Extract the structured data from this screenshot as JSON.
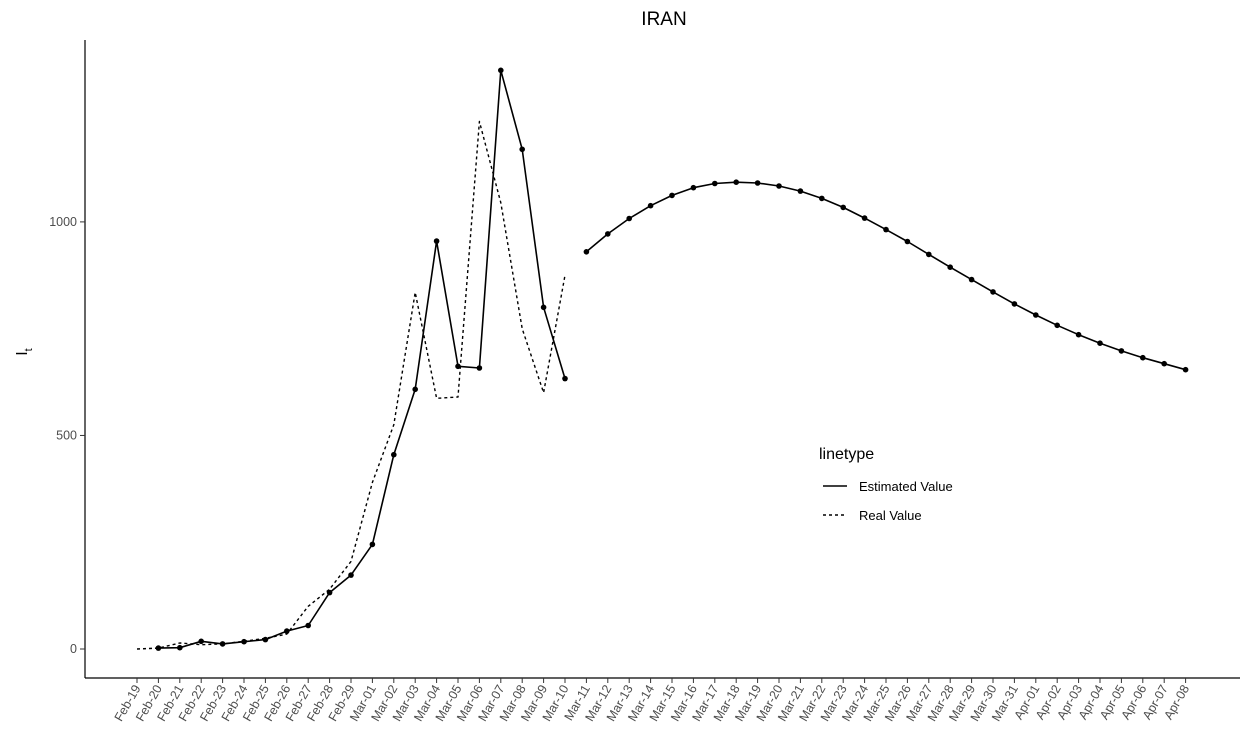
{
  "chart_data": {
    "type": "line",
    "title": "IRAN",
    "xlabel": "",
    "ylabel": "I",
    "ylabel_subscript": "t",
    "ylim": [
      -70,
      1420
    ],
    "y_ticks": [
      0,
      500,
      1000
    ],
    "grid": false,
    "legend": {
      "title": "linetype",
      "placement": "right",
      "entries": [
        {
          "label": "Estimated Value",
          "style": "solid"
        },
        {
          "label": "Real Value",
          "style": "dashed"
        }
      ]
    },
    "categories": [
      "Feb-19",
      "Feb-20",
      "Feb-21",
      "Feb-22",
      "Feb-23",
      "Feb-24",
      "Feb-25",
      "Feb-26",
      "Feb-27",
      "Feb-28",
      "Feb-29",
      "Mar-01",
      "Mar-02",
      "Mar-03",
      "Mar-04",
      "Mar-05",
      "Mar-06",
      "Mar-07",
      "Mar-08",
      "Mar-09",
      "Mar-10",
      "Mar-11",
      "Mar-12",
      "Mar-13",
      "Mar-14",
      "Mar-15",
      "Mar-16",
      "Mar-17",
      "Mar-18",
      "Mar-19",
      "Mar-20",
      "Mar-21",
      "Mar-22",
      "Mar-23",
      "Mar-24",
      "Mar-25",
      "Mar-26",
      "Mar-27",
      "Mar-28",
      "Mar-29",
      "Mar-30",
      "Mar-31",
      "Apr-01",
      "Apr-02",
      "Apr-03",
      "Apr-04",
      "Apr-05",
      "Apr-06",
      "Apr-07",
      "Apr-08"
    ],
    "series": [
      {
        "name": "Estimated Value",
        "style": "solid",
        "segments": [
          {
            "start": "Feb-20",
            "values": [
              2,
              3,
              18,
              12,
              17,
              22,
              42,
              55,
              132,
              173,
              245,
              455,
              608,
              955,
              662,
              658,
              1355,
              1170,
              800,
              633
            ]
          },
          {
            "start": "Mar-11",
            "values": [
              930,
              972,
              1008,
              1038,
              1062,
              1080,
              1090,
              1093,
              1091,
              1084,
              1072,
              1055,
              1034,
              1009,
              982,
              954,
              924,
              894,
              865,
              836,
              808,
              782,
              758,
              736,
              716,
              698,
              682,
              668,
              654
            ]
          }
        ]
      },
      {
        "name": "Real Value",
        "style": "dashed",
        "segments": [
          {
            "start": "Feb-19",
            "values": [
              0,
              2,
              14,
              10,
              12,
              18,
              25,
              35,
              100,
              140,
              205,
              390,
              525,
              835,
              587,
              590,
              1235,
              1045,
              750,
              600,
              875
            ]
          }
        ]
      }
    ]
  }
}
